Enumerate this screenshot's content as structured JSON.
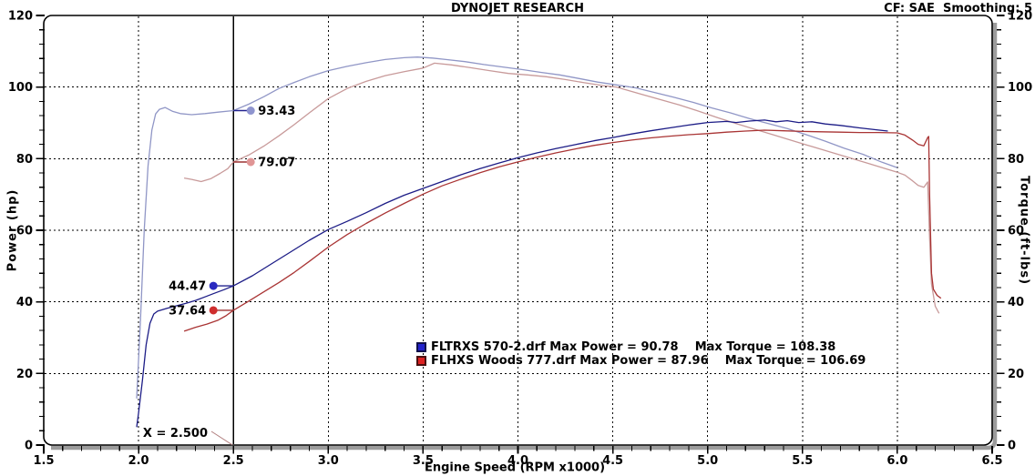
{
  "header": {
    "title": "DYNOJET RESEARCH",
    "correction_info": "CF: SAE  Smoothing: 5"
  },
  "chart_data": {
    "type": "line",
    "title": "DYNOJET RESEARCH",
    "xlabel": "Engine Speed (RPM x1000)",
    "ylabel_left": "Power (hp)",
    "ylabel_right": "Torque (ft-lbs)",
    "xlim": [
      1.5,
      6.5
    ],
    "ylim": [
      0,
      120
    ],
    "x_major_tick_step": 0.5,
    "x_minor_tick_step": 0.1,
    "y_major_tick_step": 20,
    "y_minor_tick_step": 4,
    "grid_style": "dashed-at-major-ticks",
    "legend_position": "bottom-center",
    "cursor": {
      "x": 2.5,
      "x_label": "X = 2.500",
      "readouts": [
        {
          "value": "93.43",
          "y": 93.43,
          "series": "fltrxs-torque",
          "side": "right",
          "dot_color": "#8f95cf",
          "line_color": "#23238f"
        },
        {
          "value": "79.07",
          "y": 79.07,
          "series": "flhxs-torque",
          "side": "right",
          "dot_color": "#e09595",
          "line_color": "#9c3232"
        },
        {
          "value": "44.47",
          "y": 44.47,
          "series": "fltrxs-power",
          "side": "left",
          "dot_color": "#2a2ac0",
          "line_color": "#23238f"
        },
        {
          "value": "37.64",
          "y": 37.64,
          "series": "flhxs-power",
          "side": "left",
          "dot_color": "#cf2e2e",
          "line_color": "#9c3232"
        }
      ]
    },
    "legend": [
      {
        "run": "FLTRXS 570-2.drf",
        "max_power": 90.78,
        "max_torque": 108.38,
        "swatch_fill": "#2323cc",
        "swatch_border": "#10104a",
        "label": "FLTRXS 570-2.drf Max Power = 90.78    Max Torque = 108.38"
      },
      {
        "run": "FLHXS Woods 777.drf",
        "max_power": 87.96,
        "max_torque": 106.69,
        "swatch_fill": "#dd2222",
        "swatch_border": "#4a1010",
        "label": "FLHXS Woods 777.drf Max Power = 87.96    Max Torque = 106.69"
      }
    ],
    "series": [
      {
        "id": "fltrxs-torque",
        "name": "FLTRXS 570-2.drf Torque",
        "axis": "torque",
        "color": "#9096c6",
        "points": [
          [
            1.99,
            13
          ],
          [
            2.01,
            35
          ],
          [
            2.03,
            60
          ],
          [
            2.05,
            78
          ],
          [
            2.07,
            88
          ],
          [
            2.09,
            92.5
          ],
          [
            2.11,
            93.8
          ],
          [
            2.14,
            94.3
          ],
          [
            2.18,
            93.2
          ],
          [
            2.22,
            92.6
          ],
          [
            2.28,
            92.3
          ],
          [
            2.35,
            92.6
          ],
          [
            2.42,
            93
          ],
          [
            2.5,
            93.43
          ],
          [
            2.58,
            95.2
          ],
          [
            2.66,
            97.3
          ],
          [
            2.74,
            99.6
          ],
          [
            2.82,
            101.3
          ],
          [
            2.9,
            102.9
          ],
          [
            3,
            104.6
          ],
          [
            3.1,
            105.8
          ],
          [
            3.2,
            106.8
          ],
          [
            3.3,
            107.7
          ],
          [
            3.4,
            108.2
          ],
          [
            3.47,
            108.38
          ],
          [
            3.55,
            108.1
          ],
          [
            3.62,
            107.7
          ],
          [
            3.72,
            107.1
          ],
          [
            3.82,
            106.3
          ],
          [
            3.92,
            105.6
          ],
          [
            4.02,
            104.9
          ],
          [
            4.12,
            104.1
          ],
          [
            4.22,
            103.4
          ],
          [
            4.32,
            102.4
          ],
          [
            4.42,
            101.4
          ],
          [
            4.52,
            100.6
          ],
          [
            4.62,
            99.8
          ],
          [
            4.72,
            98.5
          ],
          [
            4.82,
            97.2
          ],
          [
            4.92,
            95.8
          ],
          [
            5.02,
            94.2
          ],
          [
            5.12,
            92.8
          ],
          [
            5.22,
            91.2
          ],
          [
            5.32,
            89.8
          ],
          [
            5.42,
            88.4
          ],
          [
            5.52,
            86.7
          ],
          [
            5.62,
            84.9
          ],
          [
            5.72,
            82.9
          ],
          [
            5.82,
            81.2
          ],
          [
            5.92,
            79
          ],
          [
            6,
            77.5
          ]
        ]
      },
      {
        "id": "flhxs-torque",
        "name": "FLHXS Woods 777.drf Torque",
        "axis": "torque",
        "color": "#c89a9a",
        "points": [
          [
            2.24,
            74.6
          ],
          [
            2.28,
            74.2
          ],
          [
            2.33,
            73.6
          ],
          [
            2.38,
            74.4
          ],
          [
            2.43,
            75.9
          ],
          [
            2.47,
            77.2
          ],
          [
            2.5,
            79.07
          ],
          [
            2.58,
            81
          ],
          [
            2.66,
            83.5
          ],
          [
            2.74,
            86.4
          ],
          [
            2.82,
            89.5
          ],
          [
            2.9,
            92.8
          ],
          [
            3,
            96.8
          ],
          [
            3.1,
            99.6
          ],
          [
            3.2,
            101.6
          ],
          [
            3.3,
            103.2
          ],
          [
            3.4,
            104.3
          ],
          [
            3.5,
            105.3
          ],
          [
            3.56,
            106.69
          ],
          [
            3.65,
            106.2
          ],
          [
            3.75,
            105.4
          ],
          [
            3.85,
            104.6
          ],
          [
            3.95,
            103.8
          ],
          [
            4.05,
            103.4
          ],
          [
            4.15,
            102.9
          ],
          [
            4.25,
            102.1
          ],
          [
            4.35,
            101.2
          ],
          [
            4.45,
            100.4
          ],
          [
            4.52,
            100
          ],
          [
            4.65,
            98
          ],
          [
            4.75,
            96.5
          ],
          [
            4.85,
            95
          ],
          [
            4.95,
            93.3
          ],
          [
            5.05,
            91.5
          ],
          [
            5.15,
            89.8
          ],
          [
            5.25,
            88.2
          ],
          [
            5.35,
            86.6
          ],
          [
            5.45,
            85
          ],
          [
            5.55,
            83.4
          ],
          [
            5.65,
            81.8
          ],
          [
            5.75,
            80.2
          ],
          [
            5.85,
            78.6
          ],
          [
            5.95,
            77
          ],
          [
            6,
            76.2
          ],
          [
            6.04,
            75.4
          ],
          [
            6.08,
            73.8
          ],
          [
            6.11,
            72.5
          ],
          [
            6.14,
            72
          ],
          [
            6.16,
            73.5
          ],
          [
            6.17,
            58
          ],
          [
            6.18,
            45
          ],
          [
            6.2,
            38.8
          ],
          [
            6.22,
            36.8
          ]
        ]
      },
      {
        "id": "fltrxs-power",
        "name": "FLTRXS 570-2.drf Power",
        "axis": "power",
        "color": "#1c1c86",
        "points": [
          [
            1.99,
            5
          ],
          [
            2,
            9
          ],
          [
            2.02,
            18
          ],
          [
            2.04,
            28
          ],
          [
            2.06,
            34
          ],
          [
            2.08,
            36.6
          ],
          [
            2.1,
            37.4
          ],
          [
            2.15,
            38.2
          ],
          [
            2.2,
            38.9
          ],
          [
            2.25,
            39.6
          ],
          [
            2.3,
            40.4
          ],
          [
            2.35,
            41.4
          ],
          [
            2.4,
            42.4
          ],
          [
            2.45,
            43.4
          ],
          [
            2.5,
            44.47
          ],
          [
            2.6,
            47.3
          ],
          [
            2.7,
            50.6
          ],
          [
            2.8,
            53.9
          ],
          [
            2.9,
            57.2
          ],
          [
            3,
            60.2
          ],
          [
            3.1,
            62.5
          ],
          [
            3.2,
            64.9
          ],
          [
            3.3,
            67.5
          ],
          [
            3.4,
            69.8
          ],
          [
            3.5,
            71.7
          ],
          [
            3.6,
            73.6
          ],
          [
            3.7,
            75.5
          ],
          [
            3.8,
            77.2
          ],
          [
            3.9,
            78.8
          ],
          [
            4,
            80.3
          ],
          [
            4.1,
            81.6
          ],
          [
            4.2,
            82.8
          ],
          [
            4.3,
            83.9
          ],
          [
            4.4,
            85
          ],
          [
            4.5,
            85.9
          ],
          [
            4.6,
            86.9
          ],
          [
            4.7,
            87.8
          ],
          [
            4.8,
            88.6
          ],
          [
            4.9,
            89.4
          ],
          [
            5,
            90.1
          ],
          [
            5.1,
            90.4
          ],
          [
            5.15,
            90.1
          ],
          [
            5.22,
            90.5
          ],
          [
            5.3,
            90.78
          ],
          [
            5.36,
            90.3
          ],
          [
            5.42,
            90.6
          ],
          [
            5.48,
            90.1
          ],
          [
            5.55,
            90.3
          ],
          [
            5.62,
            89.7
          ],
          [
            5.7,
            89.3
          ],
          [
            5.8,
            88.6
          ],
          [
            5.9,
            88
          ],
          [
            5.95,
            87.7
          ]
        ]
      },
      {
        "id": "flhxs-power",
        "name": "FLHXS Woods 777.drf Power",
        "axis": "power",
        "color": "#a93434",
        "points": [
          [
            2.24,
            31.8
          ],
          [
            2.3,
            32.9
          ],
          [
            2.36,
            33.8
          ],
          [
            2.42,
            34.9
          ],
          [
            2.46,
            36.1
          ],
          [
            2.5,
            37.64
          ],
          [
            2.58,
            40.2
          ],
          [
            2.66,
            42.8
          ],
          [
            2.74,
            45.4
          ],
          [
            2.82,
            48.2
          ],
          [
            2.9,
            51.3
          ],
          [
            3,
            55.3
          ],
          [
            3.1,
            58.8
          ],
          [
            3.2,
            61.9
          ],
          [
            3.3,
            64.8
          ],
          [
            3.4,
            67.5
          ],
          [
            3.5,
            70.1
          ],
          [
            3.6,
            72.4
          ],
          [
            3.7,
            74.3
          ],
          [
            3.8,
            76.1
          ],
          [
            3.9,
            77.7
          ],
          [
            4,
            79.1
          ],
          [
            4.1,
            80.4
          ],
          [
            4.2,
            81.6
          ],
          [
            4.3,
            82.7
          ],
          [
            4.4,
            83.7
          ],
          [
            4.5,
            84.5
          ],
          [
            4.6,
            85.2
          ],
          [
            4.7,
            85.8
          ],
          [
            4.8,
            86.3
          ],
          [
            4.9,
            86.7
          ],
          [
            5,
            87
          ],
          [
            5.1,
            87.4
          ],
          [
            5.2,
            87.7
          ],
          [
            5.3,
            87.96
          ],
          [
            5.4,
            87.8
          ],
          [
            5.5,
            87.6
          ],
          [
            5.6,
            87.5
          ],
          [
            5.7,
            87.4
          ],
          [
            5.8,
            87.3
          ],
          [
            5.9,
            87.3
          ],
          [
            6,
            87.2
          ],
          [
            6.04,
            86.6
          ],
          [
            6.08,
            85.2
          ],
          [
            6.11,
            84
          ],
          [
            6.14,
            83.6
          ],
          [
            6.16,
            85.9
          ],
          [
            6.165,
            86.2
          ],
          [
            6.17,
            70
          ],
          [
            6.18,
            48
          ],
          [
            6.19,
            43.5
          ],
          [
            6.21,
            41.8
          ],
          [
            6.23,
            41
          ]
        ]
      }
    ]
  }
}
